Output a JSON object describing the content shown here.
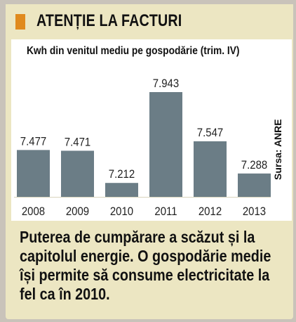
{
  "header": {
    "title": "ATENȚIE LA FACTURI",
    "accent": "#e08a1e"
  },
  "chart_data": {
    "type": "bar",
    "title": "Kwh din venitul mediu pe gospodărie (trim. IV)",
    "categories": [
      "2008",
      "2009",
      "2010",
      "2011",
      "2012",
      "2013"
    ],
    "values": [
      7477,
      7471,
      7212,
      7943,
      7547,
      7288
    ],
    "value_labels": [
      "7.477",
      "7.471",
      "7.212",
      "7.943",
      "7.547",
      "7.288"
    ],
    "ylim": [
      7100,
      7960
    ],
    "bar_color": "#6b7d86",
    "source": "Sursa: ANRE"
  },
  "note": {
    "text": "Puterea de cumpărare a scăzut și la capitolul energie. O gospodărie medie își permite să consume electricitate la fel ca în 2010."
  }
}
